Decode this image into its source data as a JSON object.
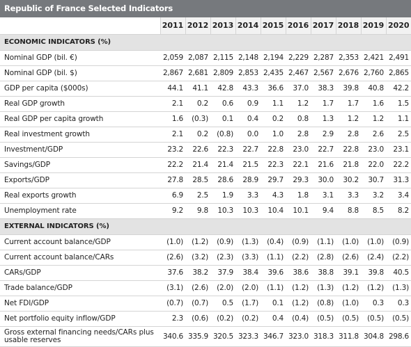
{
  "title": "Republic of France Selected Indicators",
  "years": [
    "2011",
    "2012",
    "2013",
    "2014",
    "2015",
    "2016",
    "2017",
    "2018",
    "2019",
    "2020"
  ],
  "sections": [
    {
      "heading": "ECONOMIC INDICATORS (%)",
      "rows": [
        {
          "label": "Nominal GDP (bil. €)",
          "values": [
            "2,059",
            "2,087",
            "2,115",
            "2,148",
            "2,194",
            "2,229",
            "2,287",
            "2,353",
            "2,421",
            "2,491"
          ]
        },
        {
          "label": "Nominal GDP (bil. $)",
          "values": [
            "2,867",
            "2,681",
            "2,809",
            "2,853",
            "2,435",
            "2,467",
            "2,567",
            "2,676",
            "2,760",
            "2,865"
          ]
        },
        {
          "label": "GDP per capita ($000s)",
          "values": [
            "44.1",
            "41.1",
            "42.8",
            "43.3",
            "36.6",
            "37.0",
            "38.3",
            "39.8",
            "40.8",
            "42.2"
          ]
        },
        {
          "label": "Real GDP growth",
          "values": [
            "2.1",
            "0.2",
            "0.6",
            "0.9",
            "1.1",
            "1.2",
            "1.7",
            "1.7",
            "1.6",
            "1.5"
          ]
        },
        {
          "label": "Real GDP per capita growth",
          "values": [
            "1.6",
            "(0.3)",
            "0.1",
            "0.4",
            "0.2",
            "0.8",
            "1.3",
            "1.2",
            "1.2",
            "1.1"
          ]
        },
        {
          "label": "Real investment growth",
          "values": [
            "2.1",
            "0.2",
            "(0.8)",
            "0.0",
            "1.0",
            "2.8",
            "2.9",
            "2.8",
            "2.6",
            "2.5"
          ]
        },
        {
          "label": "Investment/GDP",
          "values": [
            "23.2",
            "22.6",
            "22.3",
            "22.7",
            "22.8",
            "23.0",
            "22.7",
            "22.8",
            "23.0",
            "23.1"
          ]
        },
        {
          "label": "Savings/GDP",
          "values": [
            "22.2",
            "21.4",
            "21.4",
            "21.5",
            "22.3",
            "22.1",
            "21.6",
            "21.8",
            "22.0",
            "22.2"
          ]
        },
        {
          "label": "Exports/GDP",
          "values": [
            "27.8",
            "28.5",
            "28.6",
            "28.9",
            "29.7",
            "29.3",
            "30.0",
            "30.2",
            "30.7",
            "31.3"
          ]
        },
        {
          "label": "Real exports growth",
          "values": [
            "6.9",
            "2.5",
            "1.9",
            "3.3",
            "4.3",
            "1.8",
            "3.1",
            "3.3",
            "3.2",
            "3.4"
          ]
        },
        {
          "label": "Unemployment rate",
          "values": [
            "9.2",
            "9.8",
            "10.3",
            "10.3",
            "10.4",
            "10.1",
            "9.4",
            "8.8",
            "8.5",
            "8.2"
          ]
        }
      ]
    },
    {
      "heading": "EXTERNAL INDICATORS (%)",
      "rows": [
        {
          "label": "Current account balance/GDP",
          "values": [
            "(1.0)",
            "(1.2)",
            "(0.9)",
            "(1.3)",
            "(0.4)",
            "(0.9)",
            "(1.1)",
            "(1.0)",
            "(1.0)",
            "(0.9)"
          ]
        },
        {
          "label": "Current account balance/CARs",
          "values": [
            "(2.6)",
            "(3.2)",
            "(2.3)",
            "(3.3)",
            "(1.1)",
            "(2.2)",
            "(2.8)",
            "(2.6)",
            "(2.4)",
            "(2.2)"
          ]
        },
        {
          "label": "CARs/GDP",
          "values": [
            "37.6",
            "38.2",
            "37.9",
            "38.4",
            "39.6",
            "38.6",
            "38.8",
            "39.1",
            "39.8",
            "40.5"
          ]
        },
        {
          "label": "Trade balance/GDP",
          "values": [
            "(3.1)",
            "(2.6)",
            "(2.0)",
            "(2.0)",
            "(1.1)",
            "(1.2)",
            "(1.3)",
            "(1.2)",
            "(1.2)",
            "(1.3)"
          ]
        },
        {
          "label": "Net FDI/GDP",
          "values": [
            "(0.7)",
            "(0.7)",
            "0.5",
            "(1.7)",
            "0.1",
            "(1.2)",
            "(0.8)",
            "(1.0)",
            "0.3",
            "0.3"
          ]
        },
        {
          "label": "Net portfolio equity inflow/GDP",
          "values": [
            "2.3",
            "(0.6)",
            "(0.2)",
            "(0.2)",
            "0.4",
            "(0.4)",
            "(0.5)",
            "(0.5)",
            "(0.5)",
            "(0.5)"
          ]
        },
        {
          "label": "Gross external financing needs/CARs plus usable reserves",
          "values": [
            "340.6",
            "335.9",
            "320.5",
            "323.3",
            "346.7",
            "323.0",
            "318.3",
            "311.8",
            "304.8",
            "298.6"
          ]
        }
      ]
    }
  ]
}
